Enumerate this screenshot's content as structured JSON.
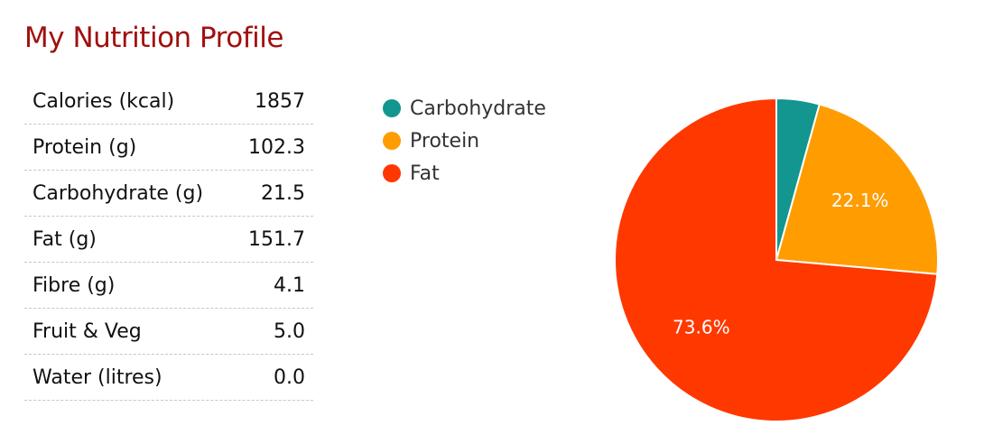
{
  "title": "My Nutrition Profile",
  "nutrition_table": [
    {
      "label": "Calories (kcal)",
      "value": "1857"
    },
    {
      "label": "Protein (g)",
      "value": "102.3"
    },
    {
      "label": "Carbohydrate (g)",
      "value": "21.5"
    },
    {
      "label": "Fat (g)",
      "value": "151.7"
    },
    {
      "label": "Fibre (g)",
      "value": "4.1"
    },
    {
      "label": "Fruit & Veg",
      "value": "5.0"
    },
    {
      "label": "Water (litres)",
      "value": "0.0"
    }
  ],
  "chart_data": {
    "type": "pie",
    "title": "",
    "legend_position": "top-left",
    "slices": [
      {
        "name": "Carbohydrate",
        "value": 4.3,
        "color": "#12968f",
        "label": ""
      },
      {
        "name": "Protein",
        "value": 22.1,
        "color": "#ff9c00",
        "label": "22.1%"
      },
      {
        "name": "Fat",
        "value": 73.6,
        "color": "#ff3800",
        "label": "73.6%"
      }
    ],
    "start": "top",
    "direction": "clockwise"
  }
}
